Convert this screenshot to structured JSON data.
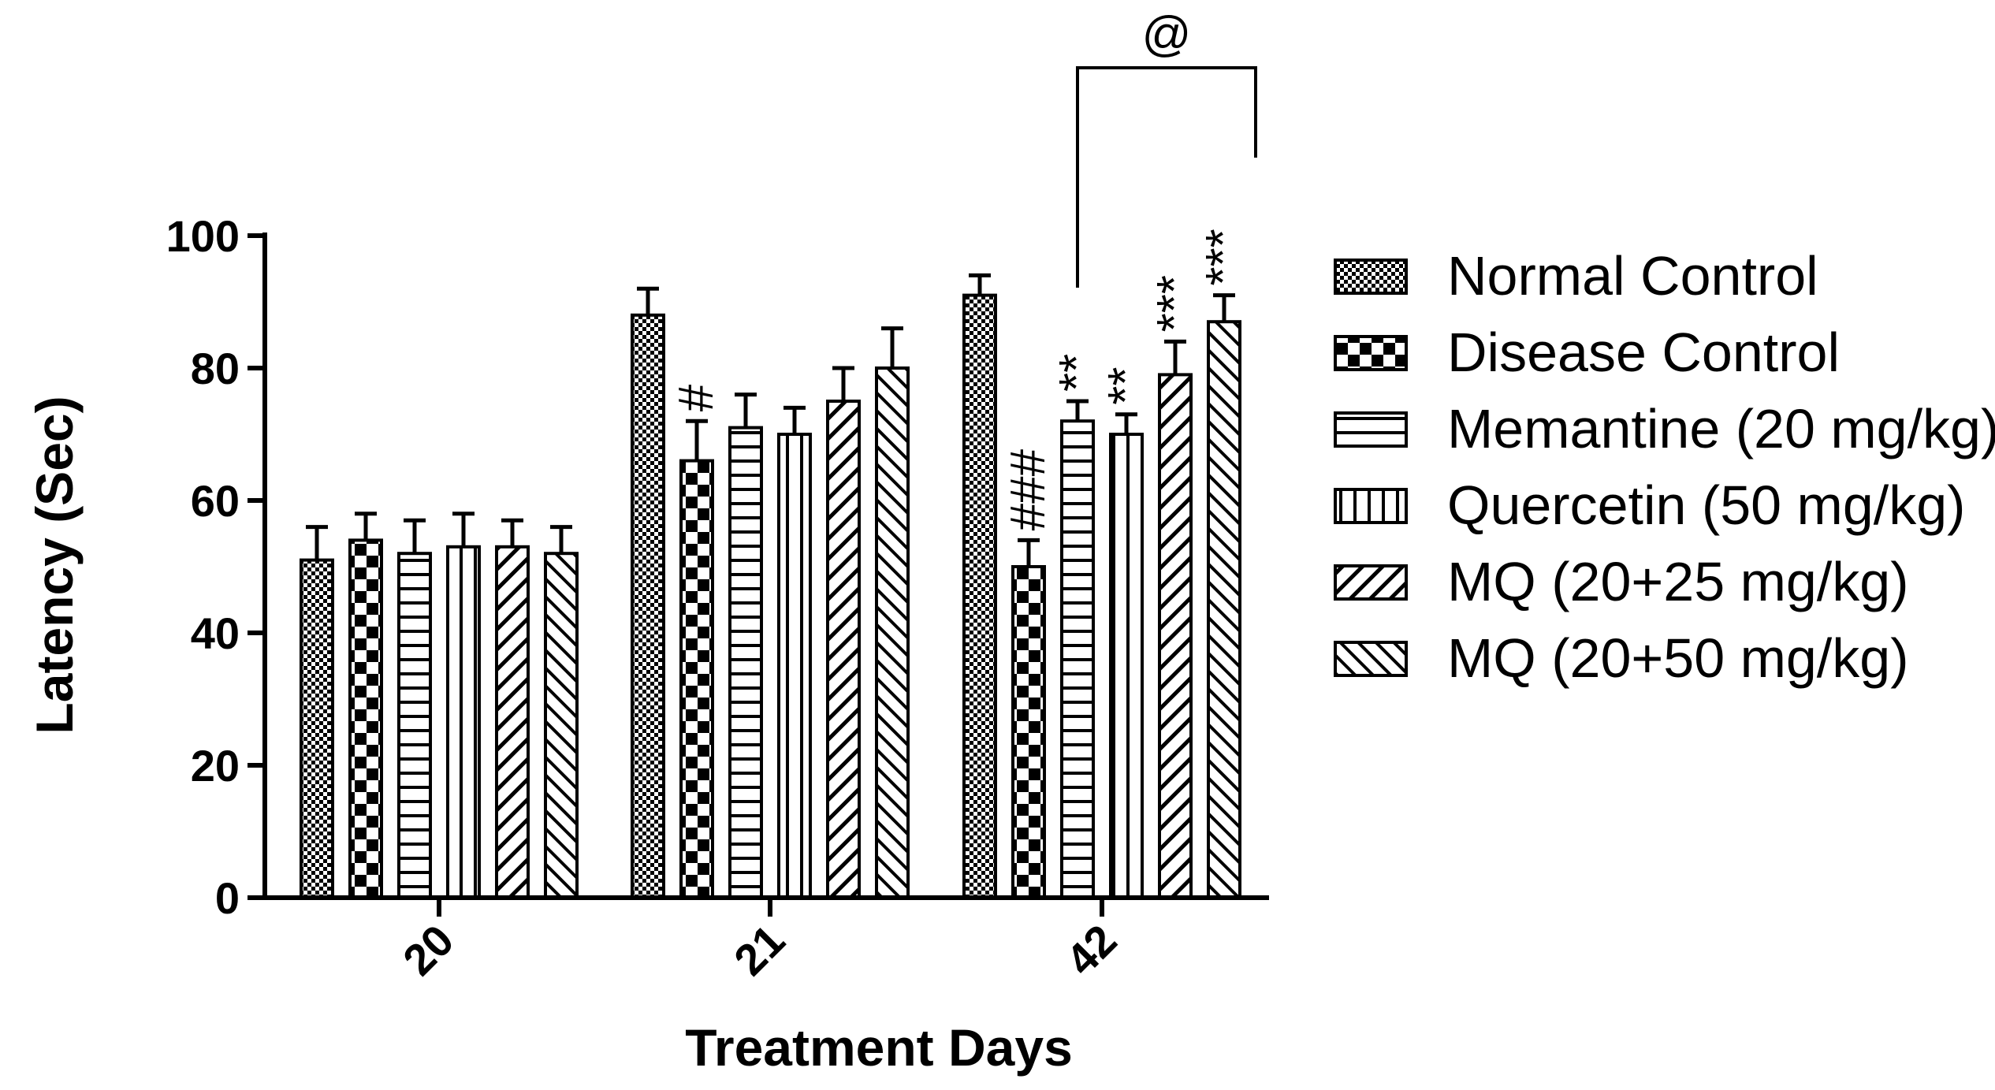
{
  "chart_data": {
    "type": "bar",
    "title": "",
    "xlabel": "Treatment Days",
    "ylabel": "Latency (Sec)",
    "ylim": [
      0,
      100
    ],
    "yticks": [
      0,
      20,
      40,
      60,
      80,
      100
    ],
    "categories": [
      "20",
      "21",
      "42"
    ],
    "legend_position": "right",
    "series": [
      {
        "name": "Normal Control",
        "pattern": "dots",
        "values": [
          51,
          88,
          91
        ],
        "errors": [
          5,
          4,
          3
        ]
      },
      {
        "name": "Disease Control",
        "pattern": "checker",
        "values": [
          54,
          66,
          50
        ],
        "errors": [
          4,
          6,
          4
        ]
      },
      {
        "name": "Memantine (20 mg/kg)",
        "pattern": "horizontal",
        "values": [
          52,
          71,
          72
        ],
        "errors": [
          5,
          5,
          3
        ]
      },
      {
        "name": "Quercetin (50 mg/kg)",
        "pattern": "vertical",
        "values": [
          53,
          70,
          70
        ],
        "errors": [
          5,
          4,
          3
        ]
      },
      {
        "name": "MQ (20+25 mg/kg)",
        "pattern": "diagonal-up",
        "values": [
          53,
          75,
          79
        ],
        "errors": [
          4,
          5,
          5
        ]
      },
      {
        "name": "MQ (20+50 mg/kg)",
        "pattern": "diagonal-down",
        "values": [
          52,
          80,
          87
        ],
        "errors": [
          4,
          6,
          4
        ]
      }
    ],
    "annotations": [
      {
        "category": "21",
        "series": "Disease Control",
        "text": "#"
      },
      {
        "category": "42",
        "series": "Disease Control",
        "text": "###"
      },
      {
        "category": "42",
        "series": "Memantine (20 mg/kg)",
        "text": "**"
      },
      {
        "category": "42",
        "series": "Quercetin (50 mg/kg)",
        "text": "**"
      },
      {
        "category": "42",
        "series": "MQ (20+25 mg/kg)",
        "text": "***"
      },
      {
        "category": "42",
        "series": "MQ (20+50 mg/kg)",
        "text": "***"
      }
    ],
    "bracket": {
      "category": "42",
      "from_series": "Memantine (20 mg/kg)",
      "to_series": "MQ (20+50 mg/kg)",
      "text": "@"
    }
  }
}
